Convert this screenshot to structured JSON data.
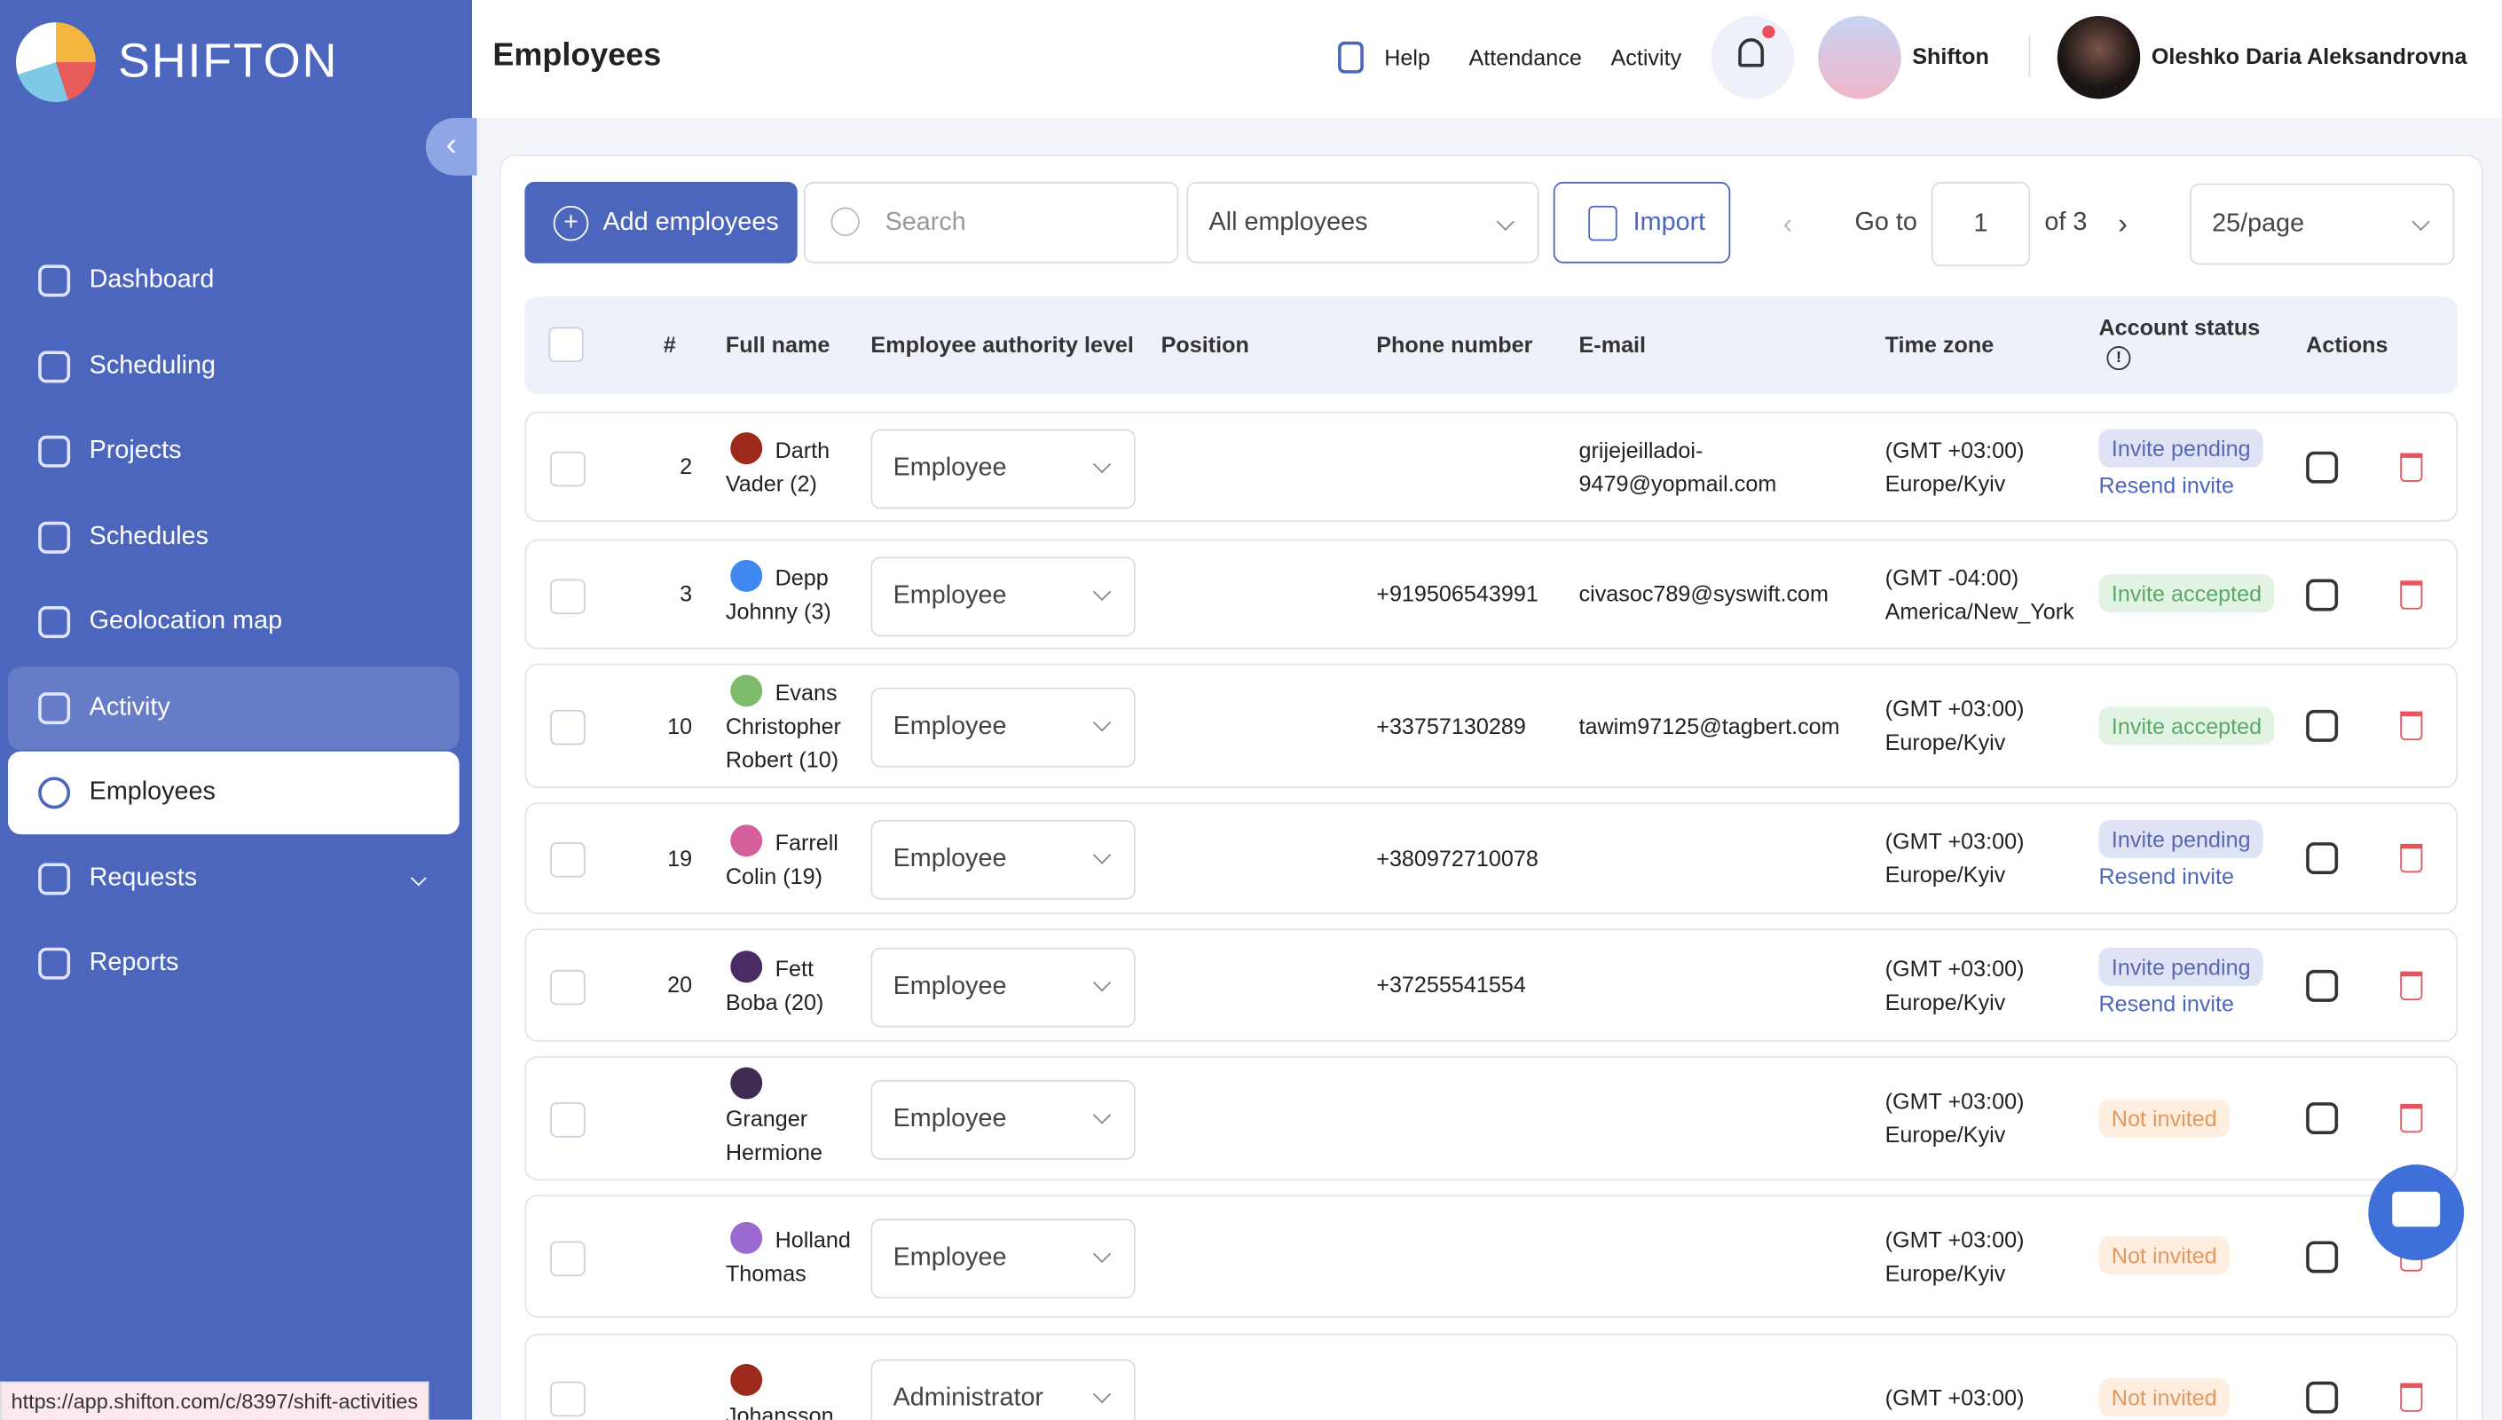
{
  "sidebar": {
    "logo": "SHIFTON",
    "nav": [
      {
        "label": "Dashboard"
      },
      {
        "label": "Scheduling"
      },
      {
        "label": "Projects"
      },
      {
        "label": "Schedules"
      },
      {
        "label": "Geolocation map"
      },
      {
        "label": "Activity"
      },
      {
        "label": "Employees"
      },
      {
        "label": "Requests"
      },
      {
        "label": "Reports"
      }
    ]
  },
  "header": {
    "title": "Employees",
    "links": [
      "Help",
      "Attendance",
      "Activity"
    ],
    "company": "Shifton",
    "user": "Oleshko Daria Aleksandrovna"
  },
  "toolbar": {
    "add": "Add employees",
    "search": "Search",
    "filter": "All employees",
    "import": "Import",
    "goto": "Go to",
    "page": "1",
    "of": "of 3",
    "per_page": "25/page"
  },
  "table": {
    "columns": [
      "#",
      "Full name",
      "Employee authority level",
      "Position",
      "Phone number",
      "E-mail",
      "Time zone",
      "Account status",
      "Actions"
    ],
    "rows": [
      {
        "num": "2",
        "name": "Darth Vader (2)",
        "color": "#9b2a1c",
        "role": "Employee",
        "phone": "",
        "email": "grijejeilladoi-9479@yopmail.com",
        "tz": "(GMT +03:00)",
        "zone": "Europe/Kyiv",
        "status": "Invite pending",
        "status_color": "#5a69ad",
        "status_bg": "#dfe3f5",
        "resend": "Resend invite"
      },
      {
        "num": "3",
        "name": "Depp Johnny (3)",
        "color": "#3f88f0",
        "role": "Employee",
        "phone": "+919506543991",
        "email": "civasoc789@syswift.com",
        "tz": "(GMT -04:00)",
        "zone": "America/New_York",
        "status": "Invite accepted",
        "status_color": "#5aa86a",
        "status_bg": "#e2f3e4"
      },
      {
        "num": "10",
        "name": "Evans Christopher Robert (10)",
        "color": "#7dbb6a",
        "role": "Employee",
        "phone": "+33757130289",
        "email": "tawim97125@tagbert.com",
        "tz": "(GMT +03:00)",
        "zone": "Europe/Kyiv",
        "status": "Invite accepted",
        "status_color": "#5aa86a",
        "status_bg": "#e2f3e4"
      },
      {
        "num": "19",
        "name": "Farrell Colin (19)",
        "color": "#d4609b",
        "role": "Employee",
        "phone": "+380972710078",
        "email": "",
        "tz": "(GMT +03:00)",
        "zone": "Europe/Kyiv",
        "status": "Invite pending",
        "status_color": "#5a69ad",
        "status_bg": "#dfe3f5",
        "resend": "Resend invite"
      },
      {
        "num": "20",
        "name": "Fett Boba (20)",
        "color": "#4a2c63",
        "role": "Employee",
        "phone": "+37255541554",
        "email": "",
        "tz": "(GMT +03:00)",
        "zone": "Europe/Kyiv",
        "status": "Invite pending",
        "status_color": "#5a69ad",
        "status_bg": "#dfe3f5",
        "resend": "Resend invite"
      },
      {
        "num": "",
        "name": "Granger Hermione",
        "color": "#3f2a52",
        "role": "Employee",
        "phone": "",
        "email": "",
        "tz": "(GMT +03:00)",
        "zone": "Europe/Kyiv",
        "status": "Not invited",
        "status_color": "#e39a5e",
        "status_bg": "#fdeee0"
      },
      {
        "num": "",
        "name": "Holland Thomas",
        "color": "#9a6ad0",
        "role": "Employee",
        "phone": "",
        "email": "",
        "tz": "(GMT +03:00)",
        "zone": "Europe/Kyiv",
        "status": "Not invited",
        "status_color": "#e39a5e",
        "status_bg": "#fdeee0"
      },
      {
        "num": "",
        "name": "Johansson",
        "color": "#9b2a1c",
        "role": "Administrator",
        "phone": "",
        "email": "",
        "tz": "(GMT +03:00)",
        "zone": "",
        "status": "Not invited",
        "status_color": "#e39a5e",
        "status_bg": "#fdeee0"
      }
    ]
  },
  "status_url": "https://app.shifton.com/c/8397/shift-activities"
}
